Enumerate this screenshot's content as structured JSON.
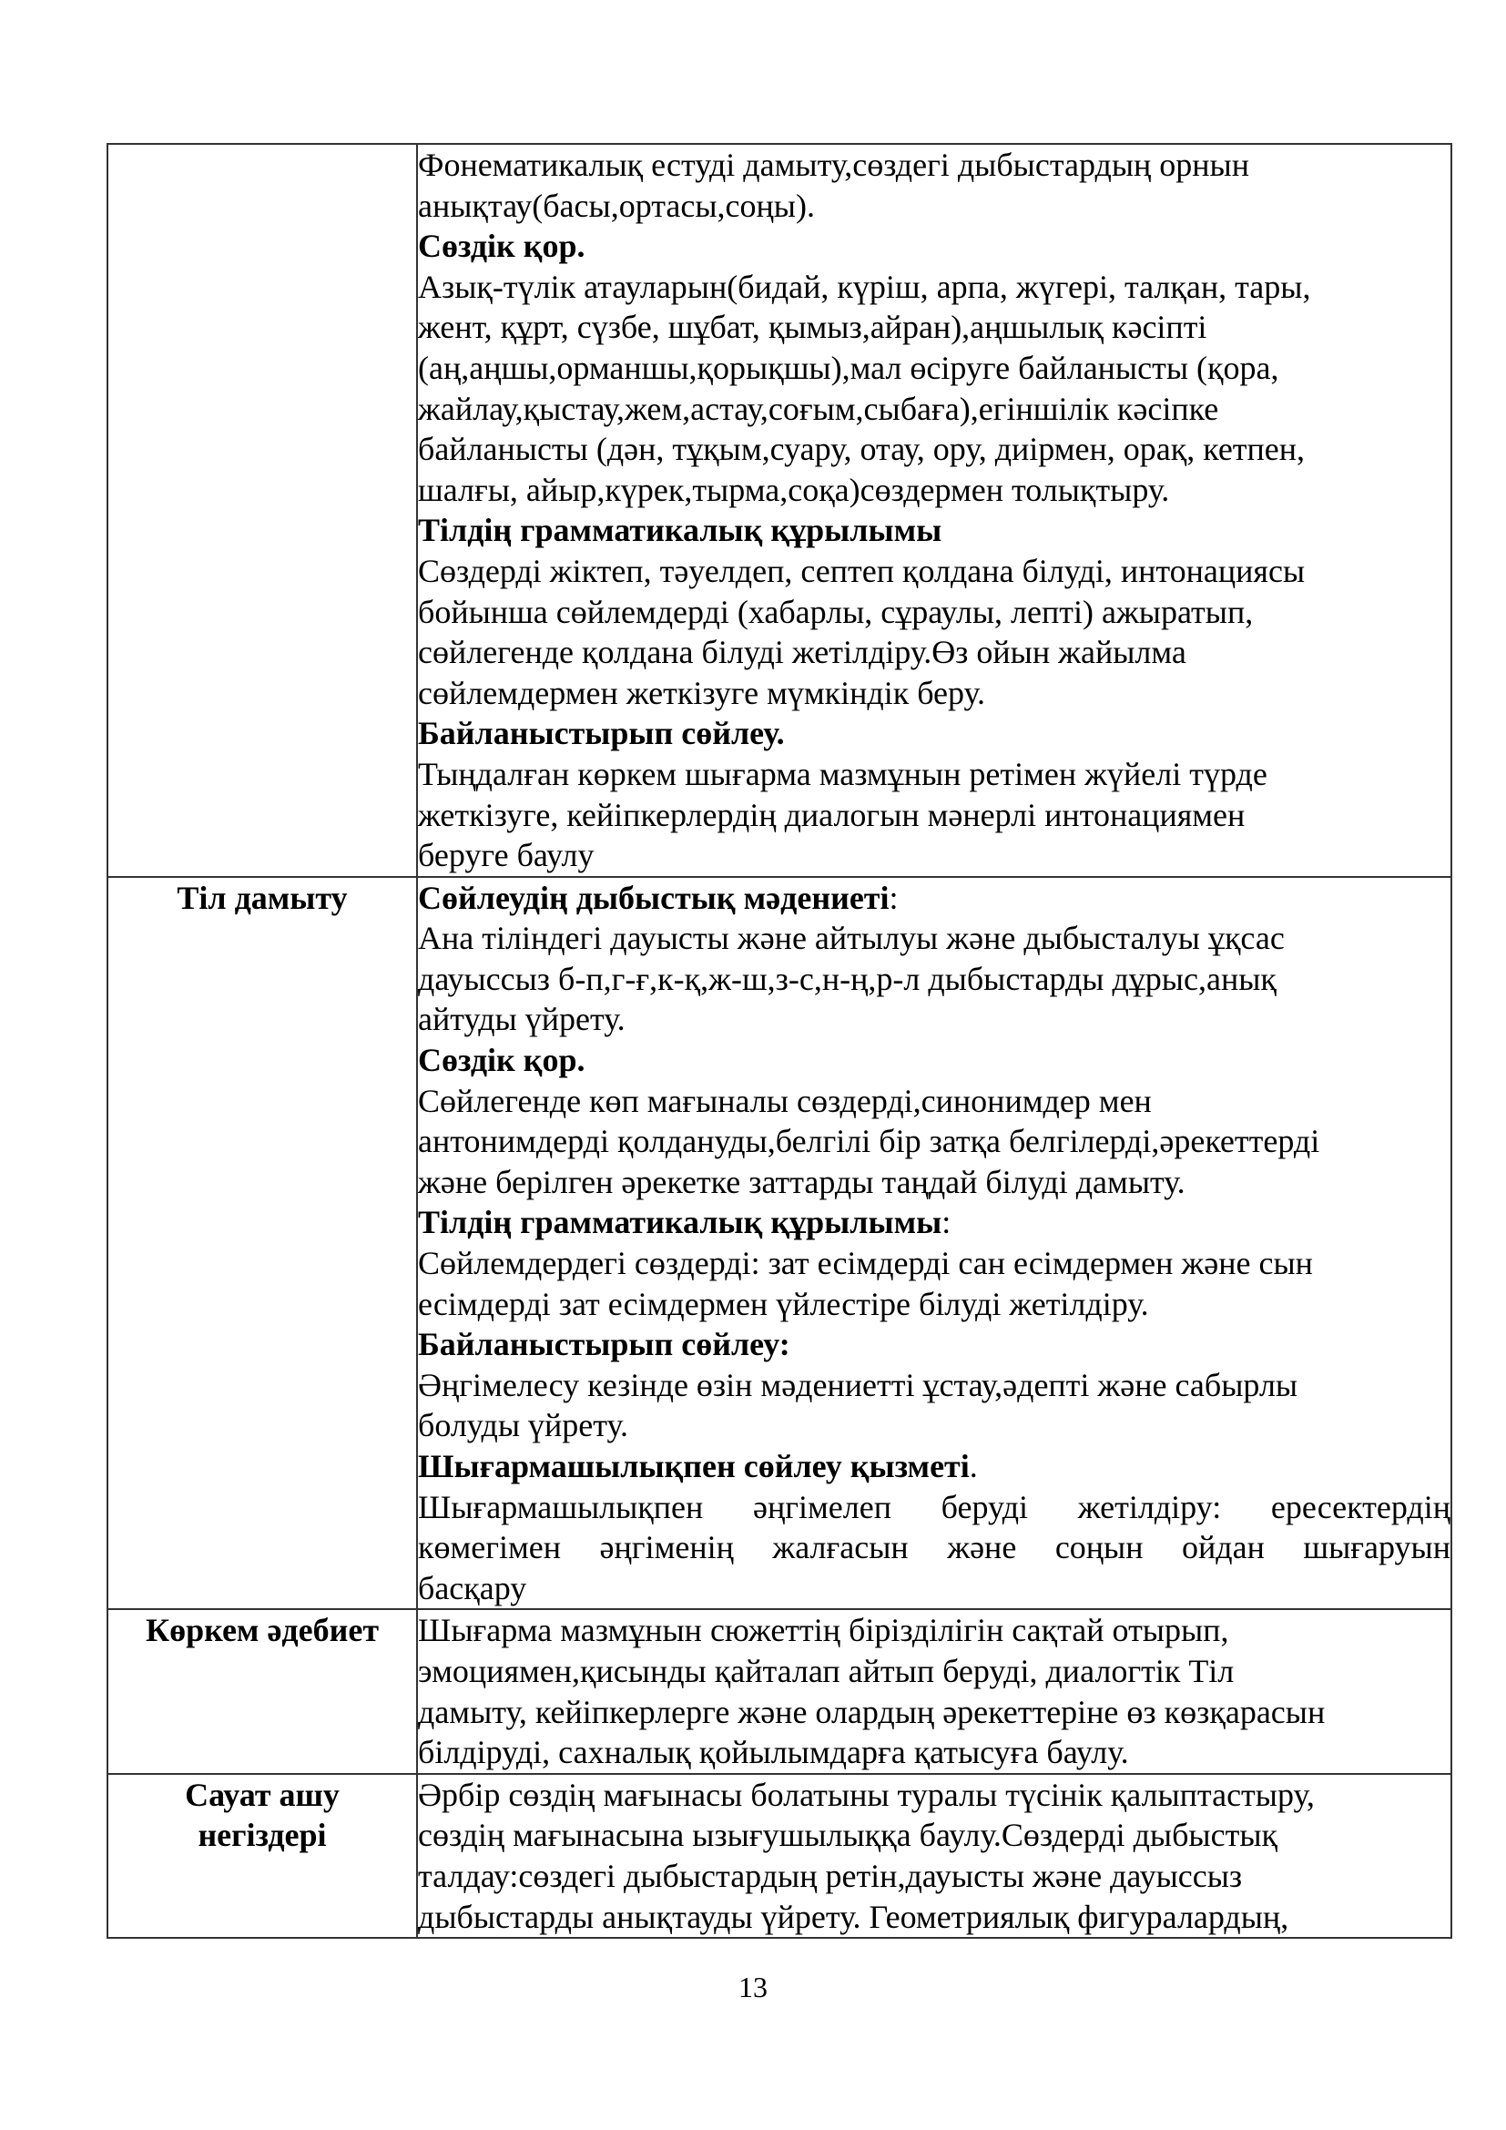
{
  "rows": [
    {
      "label": [],
      "lines": [
        {
          "text": "Фонематикалық естуді дамыту,сөздегі дыбыстардың орнын"
        },
        {
          "text": "анықтау(басы,ортасы,соңы)."
        },
        {
          "text": "Сөздік қор.",
          "bold": true
        },
        {
          "text": "Азық-түлік атауларын(бидай, күріш, арпа, жүгері, талқан, тары,"
        },
        {
          "text": "жент, құрт, сүзбе, шұбат, қымыз,айран),аңшылық кәсіпті"
        },
        {
          "text": "(аң,аңшы,орманшы,қорықшы),мал өсіруге байланысты (қора,"
        },
        {
          "text": "жайлау,қыстау,жем,астау,соғым,сыбаға),егіншілік кәсіпке"
        },
        {
          "text": "байланысты (дән, тұқым,суару, отау, ору, диірмен, орақ, кетпен,"
        },
        {
          "text": "шалғы, айыр,күрек,тырма,соқа)сөздермен толықтыру."
        },
        {
          "text": "Тілдің грамматикалық құрылымы",
          "bold": true
        },
        {
          "text": "Сөздерді жіктеп, тәуелдеп, септеп қолдана білуді, интонациясы"
        },
        {
          "text": "бойынша сөйлемдерді (хабарлы, сұраулы, лепті) ажыратып,"
        },
        {
          "text": "сөйлегенде қолдана білуді жетілдіру.Өз ойын жайылма"
        },
        {
          "text": "сөйлемдермен жеткізуге мүмкіндік беру."
        },
        {
          "text": "Байланыстырып сөйлеу.",
          "bold": true
        },
        {
          "text": "Тыңдалған көркем шығарма мазмұнын ретімен жүйелі түрде"
        },
        {
          "text": "жеткізуге, кейіпкерлердің диалогын мәнерлі интонациямен"
        },
        {
          "text": "беруге баулу"
        }
      ]
    },
    {
      "label": [
        "Тіл дамыту"
      ],
      "lines": [
        {
          "text": "Сөйлеудің дыбыстық мәдениеті",
          "bold": true,
          "suffix": ":"
        },
        {
          "text": "Ана тіліндегі дауысты және айтылуы және дыбысталуы ұқсас"
        },
        {
          "text": "дауыссыз б-п,г-ғ,к-қ,ж-ш,з-с,н-ң,р-л дыбыстарды дұрыс,анық"
        },
        {
          "text": "айтуды үйрету."
        },
        {
          "text": "Сөздік қор.",
          "bold": true
        },
        {
          "text": "Сөйлегенде көп мағыналы сөздерді,синонимдер мен"
        },
        {
          "text": "антонимдерді қолдануды,белгілі бір затқа белгілерді,әрекеттерді"
        },
        {
          "text": "және берілген әрекетке заттарды таңдай білуді дамыту."
        },
        {
          "text": "Тілдің грамматикалық құрылымы",
          "bold": true,
          "suffix": ":"
        },
        {
          "text": "Сөйлемдердегі сөздерді: зат есімдерді сан есімдермен және сын"
        },
        {
          "text": "есімдерді зат есімдермен үйлестіре білуді жетілдіру."
        },
        {
          "text": "Байланыстырып сөйлеу:",
          "bold": true
        },
        {
          "text": "Әңгімелесу кезінде өзін мәдениетті ұстау,әдепті және сабырлы"
        },
        {
          "text": "болуды үйрету."
        },
        {
          "text": "Шығармашылықпен сөйлеу қызметі",
          "bold": true,
          "suffix": "."
        },
        {
          "text": "Шығармашылықпен әңгімелеп беруді жетілдіру: ересектердің",
          "justify": true
        },
        {
          "text": "көмегімен әңгіменің жалғасын және соңын ойдан шығаруын",
          "justify": true
        },
        {
          "text": "басқару"
        }
      ]
    },
    {
      "label": [
        "Көркем әдебиет"
      ],
      "lines": [
        {
          "text": "Шығарма мазмұнын сюжеттің бірізділігін сақтай отырып,"
        },
        {
          "text": "эмоциямен,қисынды қайталап айтып беруді, диалогтік Тіл"
        },
        {
          "text": "дамыту, кейіпкерлерге және олардың әрекеттеріне өз көзқарасын"
        },
        {
          "text": "білдіруді, сахналық қойылымдарға қатысуға баулу."
        }
      ]
    },
    {
      "label": [
        "Сауат ашу",
        "негіздері"
      ],
      "lines": [
        {
          "text": "Әрбір сөздің мағынасы болатыны туралы түсінік қалыптастыру,"
        },
        {
          "text": "сөздің мағынасына ызығушылыққа баулу.Сөздерді дыбыстық"
        },
        {
          "text": "талдау:сөздегі дыбыстардың ретін,дауысты және дауыссыз"
        },
        {
          "text": "дыбыстарды анықтауды үйрету. Геометриялық фигуралардың,"
        }
      ]
    }
  ],
  "page_number": "13"
}
